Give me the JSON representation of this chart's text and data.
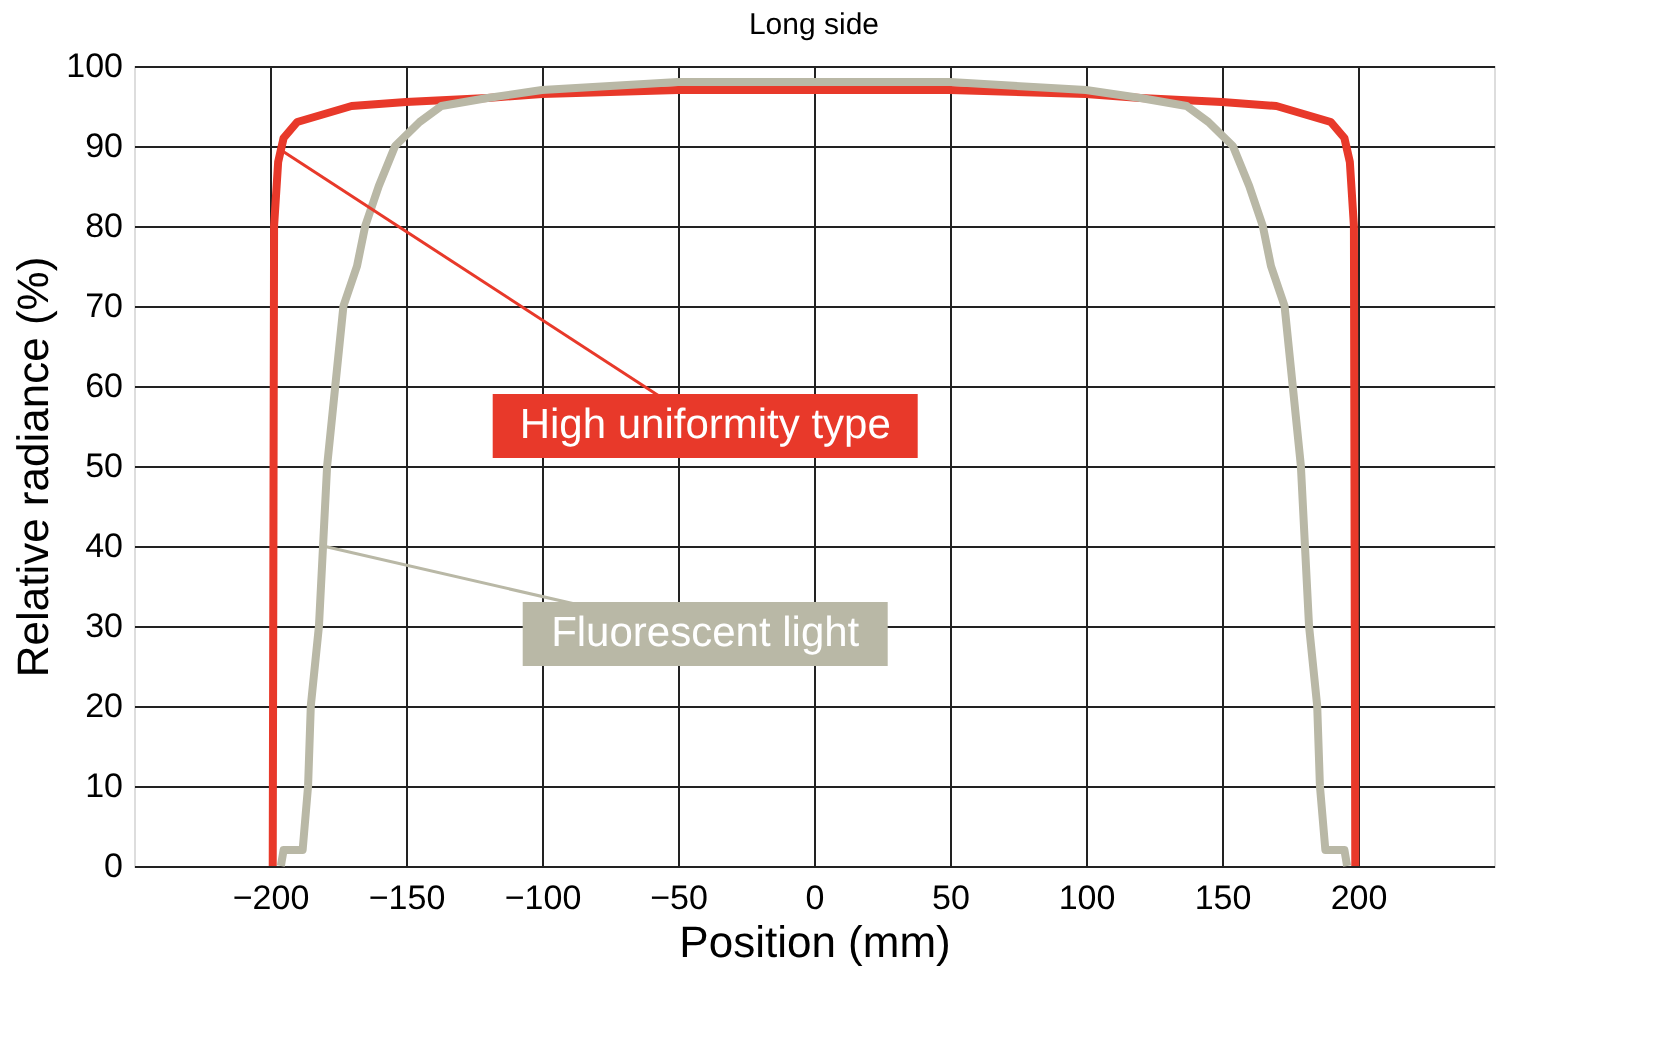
{
  "chart_data": {
    "type": "line",
    "title": "Long side",
    "xlabel": "Position (mm)",
    "ylabel": "Relative radiance (%)",
    "xlim": [
      -250,
      250
    ],
    "xticks": [
      -200,
      -150,
      -100,
      -50,
      0,
      50,
      100,
      150,
      200
    ],
    "ylim": [
      0,
      100
    ],
    "yticks": [
      0,
      10,
      20,
      30,
      40,
      50,
      60,
      70,
      80,
      90,
      100
    ],
    "grid": true,
    "marker": "none",
    "line_style": "solid",
    "series": [
      {
        "name": "High uniformity type",
        "color": "#e8392a",
        "x": [
          -199,
          -198.5,
          -197,
          -195,
          -190,
          -180,
          -170,
          -150,
          -120,
          -100,
          -50,
          0,
          50,
          100,
          120,
          150,
          170,
          180,
          190,
          195,
          197,
          198.5,
          199
        ],
        "values": [
          0,
          80,
          88,
          91,
          93,
          94,
          95,
          95.5,
          96,
          96.5,
          97,
          97,
          97,
          96.5,
          96,
          95.5,
          95,
          94,
          93,
          91,
          88,
          80,
          0
        ]
      },
      {
        "name": "Fluorescent light",
        "color": "#b9b8a6",
        "x": [
          -196,
          -195,
          -188,
          -186,
          -185,
          -182,
          -179,
          -176,
          -173,
          -168,
          -165,
          -160,
          -154,
          -145,
          -137,
          -120,
          -100,
          -50,
          0,
          50,
          100,
          120,
          137,
          145,
          154,
          160,
          165,
          168,
          173,
          176,
          179,
          182,
          185,
          186,
          188,
          195,
          196
        ],
        "values": [
          0,
          2,
          2,
          10,
          20,
          30,
          50,
          60,
          70,
          75,
          80,
          85,
          90,
          93,
          95,
          96,
          97,
          98,
          98,
          98,
          97,
          96,
          95,
          93,
          90,
          85,
          80,
          75,
          70,
          60,
          50,
          30,
          20,
          10,
          2,
          2,
          0
        ]
      }
    ]
  }
}
